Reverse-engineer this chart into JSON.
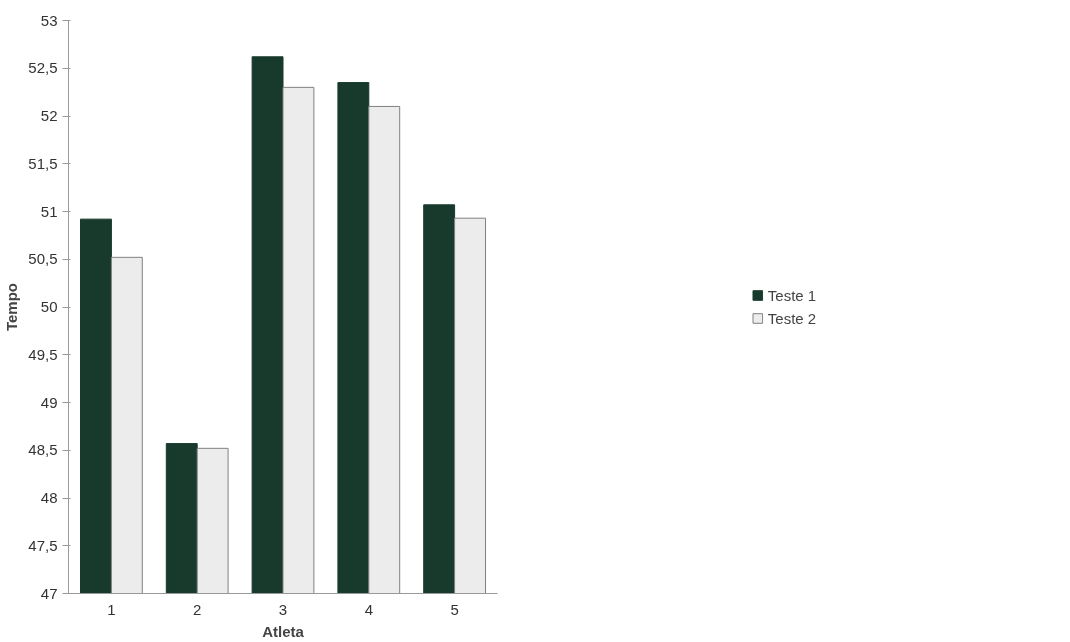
{
  "chart_data": {
    "type": "bar",
    "xlabel": "Atleta",
    "ylabel": "Tempo",
    "categories": [
      "1",
      "2",
      "3",
      "4",
      "5"
    ],
    "series": [
      {
        "name": "Teste 1",
        "color": "#183a2c",
        "values": [
          50.92,
          48.57,
          52.62,
          52.35,
          51.07
        ]
      },
      {
        "name": "Teste 2",
        "color": "#ececec",
        "values": [
          50.52,
          48.52,
          52.3,
          52.1,
          50.93
        ]
      }
    ],
    "ylim": [
      47,
      53
    ],
    "yticks": [
      47,
      {
        "value": 47.5,
        "label": "47,5"
      },
      48,
      {
        "value": 48.5,
        "label": "48,5"
      },
      49,
      {
        "value": 49.5,
        "label": "49,5"
      },
      50,
      {
        "value": 50.5,
        "label": "50,5"
      },
      51,
      {
        "value": 51.5,
        "label": "51,5"
      },
      52,
      {
        "value": 52.5,
        "label": "52,5"
      },
      53
    ],
    "grid": false,
    "legend": "right"
  }
}
